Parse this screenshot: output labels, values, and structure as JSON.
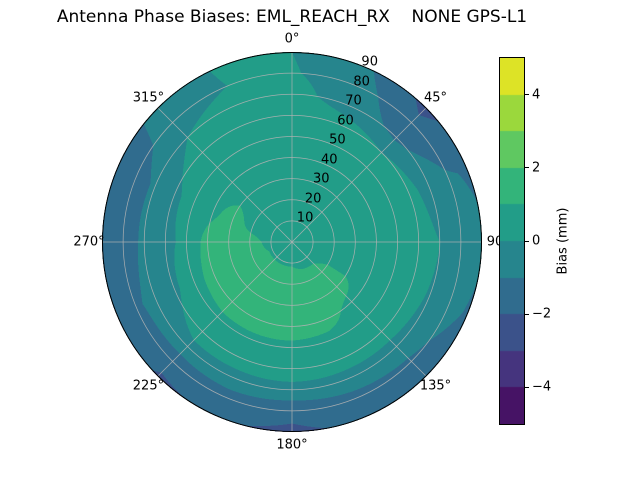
{
  "chart_data": {
    "type": "heatmap",
    "subtype": "polar_filled_contour",
    "title": "Antenna Phase Biases: EML_REACH_RX    NONE GPS-L1",
    "angle_ticks_deg": [
      0,
      45,
      90,
      135,
      180,
      225,
      270,
      315
    ],
    "angle_tick_labels": [
      "0°",
      "45°",
      "90",
      "135°",
      "180°",
      "225°",
      "270°",
      "315°"
    ],
    "radial_ticks": [
      10,
      20,
      30,
      40,
      50,
      60,
      70,
      80,
      90
    ],
    "radial_tick_labels": [
      "10",
      "20",
      "30",
      "40",
      "50",
      "60",
      "70",
      "80",
      "90"
    ],
    "radial_axis_max": 90,
    "radial_label_angle_deg": 22.5,
    "grid_on": true,
    "colorbar": {
      "label": "Bias (mm)",
      "min": -5,
      "max": 5,
      "ticks": [
        -4,
        -2,
        0,
        2,
        4
      ],
      "tick_labels": [
        "−4",
        "−2",
        "0",
        "2",
        "4"
      ],
      "level_step_mm": 1,
      "colormap": "viridis"
    },
    "grid": {
      "azimuth_deg": [
        0,
        22.5,
        45,
        67.5,
        90,
        112.5,
        135,
        157.5,
        180,
        202.5,
        225,
        247.5,
        270,
        292.5,
        315,
        337.5
      ],
      "radius": [
        0,
        10,
        20,
        30,
        40,
        50,
        60,
        70,
        80,
        90
      ]
    },
    "bias_mm": [
      [
        0.6,
        0.6,
        0.6,
        0.6,
        0.6,
        0.6,
        0.5,
        0.4,
        0.1,
        0.0
      ],
      [
        0.6,
        0.6,
        0.6,
        0.6,
        0.6,
        0.6,
        0.5,
        -0.5,
        -0.6,
        -0.8
      ],
      [
        0.6,
        0.6,
        0.6,
        0.6,
        0.6,
        0.6,
        0.0,
        -1.2,
        -1.7,
        -2.3
      ],
      [
        0.6,
        0.6,
        0.6,
        0.6,
        0.6,
        0.6,
        0.4,
        -0.5,
        -0.9,
        -1.1
      ],
      [
        0.6,
        0.6,
        0.6,
        0.6,
        0.6,
        0.6,
        0.4,
        0.0,
        -0.6,
        -0.9
      ],
      [
        0.6,
        0.6,
        0.6,
        0.6,
        0.6,
        0.6,
        0.4,
        -0.1,
        -0.7,
        -1.1
      ],
      [
        0.6,
        0.6,
        1.5,
        1.5,
        0.7,
        0.6,
        0.4,
        -0.3,
        -1.2,
        -1.6
      ],
      [
        0.6,
        0.7,
        1.5,
        1.5,
        1.4,
        0.7,
        0.4,
        -0.3,
        -1.4,
        -1.8
      ],
      [
        0.6,
        0.9,
        1.5,
        1.5,
        1.4,
        0.8,
        0.5,
        -0.3,
        -1.7,
        -2.2
      ],
      [
        0.6,
        0.9,
        1.5,
        1.5,
        1.4,
        0.8,
        0.4,
        -0.3,
        -1.5,
        -1.9
      ],
      [
        0.6,
        0.9,
        1.5,
        1.5,
        1.4,
        0.8,
        0.4,
        -0.3,
        -1.7,
        -2.1
      ],
      [
        0.6,
        0.9,
        1.5,
        1.5,
        1.4,
        0.6,
        -0.2,
        -0.8,
        -1.1,
        -1.2
      ],
      [
        0.6,
        0.6,
        1.5,
        1.5,
        1.4,
        0.2,
        -0.2,
        -0.8,
        -1.5,
        -1.8
      ],
      [
        0.6,
        0.6,
        0.6,
        1.5,
        0.7,
        0.4,
        -0.2,
        -0.8,
        -1.6,
        -2.0
      ],
      [
        0.6,
        0.6,
        0.6,
        0.6,
        0.6,
        0.5,
        0.4,
        0.0,
        -0.5,
        -0.6
      ],
      [
        0.6,
        0.6,
        0.6,
        0.6,
        0.6,
        0.6,
        0.5,
        0.4,
        0.0,
        0.1
      ]
    ],
    "viridis_stops": [
      [
        0.0,
        68,
        1,
        84
      ],
      [
        0.1,
        72,
        36,
        117
      ],
      [
        0.2,
        65,
        68,
        135
      ],
      [
        0.3,
        53,
        95,
        141
      ],
      [
        0.4,
        42,
        120,
        142
      ],
      [
        0.5,
        33,
        145,
        140
      ],
      [
        0.6,
        34,
        168,
        132
      ],
      [
        0.7,
        68,
        191,
        112
      ],
      [
        0.8,
        122,
        209,
        81
      ],
      [
        0.9,
        189,
        223,
        38
      ],
      [
        1.0,
        253,
        231,
        37
      ]
    ]
  }
}
